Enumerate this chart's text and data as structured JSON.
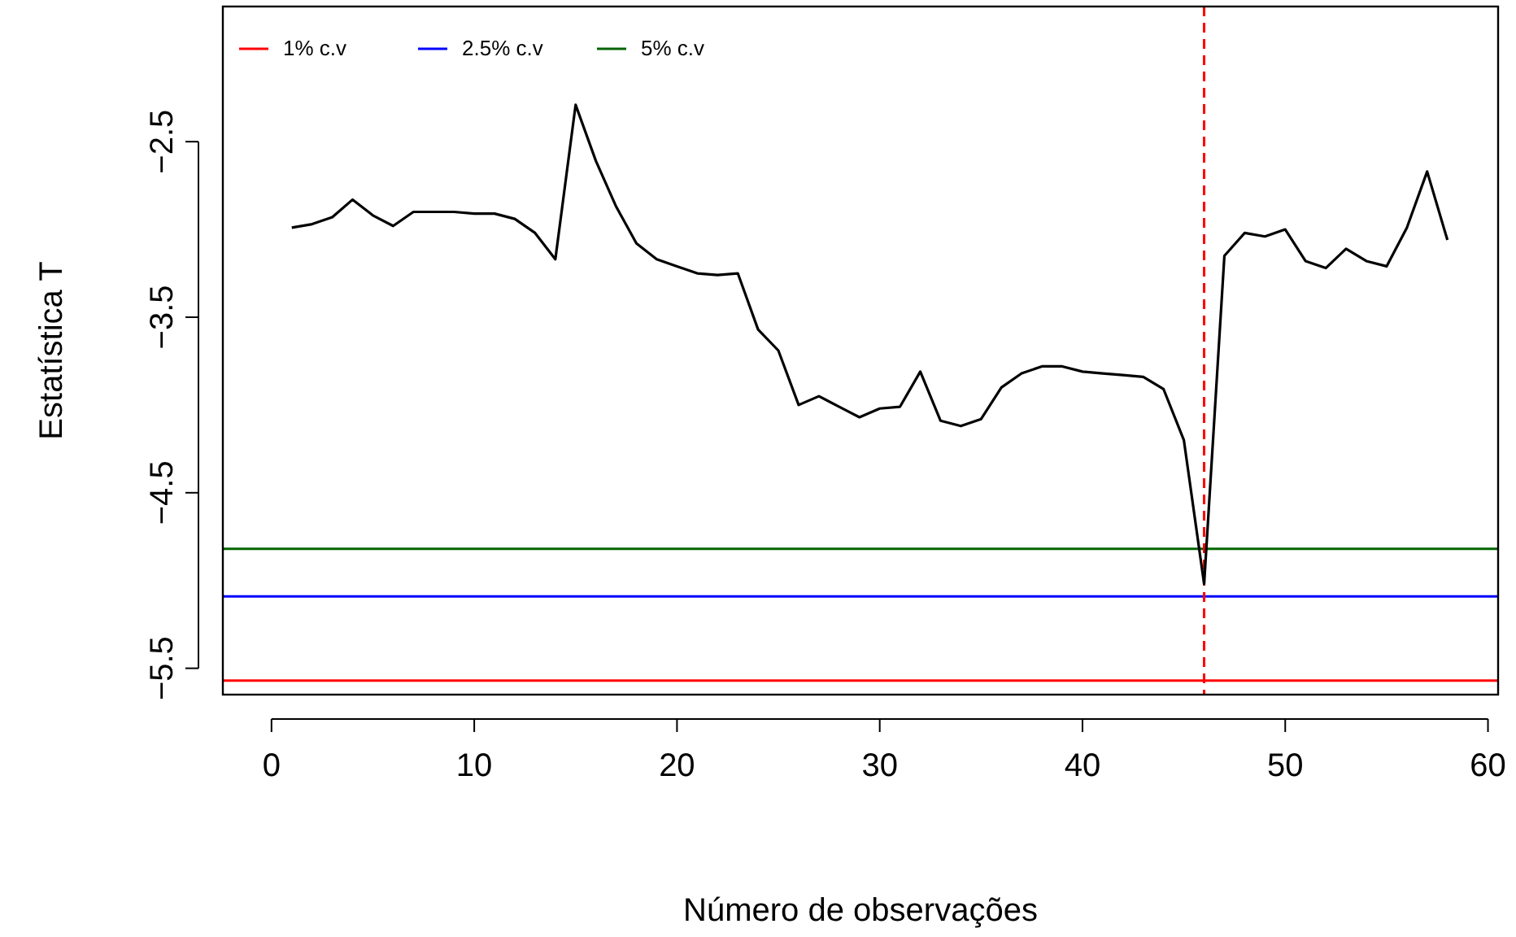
{
  "chart_data": {
    "type": "line",
    "xlabel": "Número de observações",
    "ylabel": "Estatística T",
    "x": [
      1,
      2,
      3,
      4,
      5,
      6,
      7,
      8,
      9,
      10,
      11,
      12,
      13,
      14,
      15,
      16,
      17,
      18,
      19,
      20,
      21,
      22,
      23,
      24,
      25,
      26,
      27,
      28,
      29,
      30,
      31,
      32,
      33,
      34,
      35,
      36,
      37,
      38,
      39,
      40,
      41,
      42,
      43,
      44,
      45,
      46,
      47,
      48,
      49,
      50,
      51,
      52,
      53,
      54,
      55,
      56,
      57,
      58
    ],
    "series": [
      {
        "color": "#000000",
        "values": [
          -2.99,
          -2.97,
          -2.93,
          -2.83,
          -2.92,
          -2.98,
          -2.9,
          -2.9,
          -2.9,
          -2.91,
          -2.91,
          -2.94,
          -3.02,
          -3.17,
          -2.29,
          -2.61,
          -2.87,
          -3.08,
          -3.17,
          -3.21,
          -3.25,
          -3.26,
          -3.25,
          -3.57,
          -3.69,
          -4.0,
          -3.95,
          -4.01,
          -4.07,
          -4.02,
          -4.01,
          -3.81,
          -4.09,
          -4.12,
          -4.08,
          -3.9,
          -3.82,
          -3.78,
          -3.78,
          -3.81,
          -3.82,
          -3.83,
          -3.84,
          -3.91,
          -4.2,
          -5.02,
          -3.15,
          -3.02,
          -3.04,
          -3.0,
          -3.18,
          -3.22,
          -3.11,
          -3.18,
          -3.21,
          -2.99,
          -2.67,
          -3.06
        ]
      }
    ],
    "xlim": [
      -2.4,
      60.5
    ],
    "ylim": [
      -5.65,
      -1.73
    ],
    "xticks": [
      0,
      10,
      20,
      30,
      40,
      50,
      60
    ],
    "yticks": [
      -2.5,
      -3.5,
      -4.5,
      -5.5
    ],
    "ref_lines": [
      {
        "axis": "y",
        "value": -5.57,
        "label": "1% c.v",
        "color": "#ff0000"
      },
      {
        "axis": "y",
        "value": -5.09,
        "label": "2.5% c.v",
        "color": "#0000ff"
      },
      {
        "axis": "y",
        "value": -4.82,
        "label": "5% c.v",
        "color": "#006400"
      },
      {
        "axis": "x",
        "value": 46,
        "color": "#ff0000",
        "line_style": "dashed"
      }
    ],
    "legend": "top left",
    "grid": false,
    "marker": "none",
    "line_style": "solid"
  }
}
